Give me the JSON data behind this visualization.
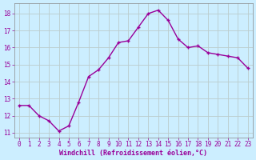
{
  "x": [
    0,
    1,
    2,
    3,
    4,
    5,
    6,
    7,
    8,
    9,
    10,
    11,
    12,
    13,
    14,
    15,
    16,
    17,
    18,
    19,
    20,
    21,
    22,
    23
  ],
  "y": [
    12.6,
    12.6,
    12.0,
    11.7,
    11.1,
    11.4,
    12.8,
    14.3,
    14.7,
    15.4,
    16.3,
    16.4,
    17.2,
    18.0,
    18.2,
    17.6,
    16.5,
    16.0,
    16.1,
    15.7,
    15.6,
    15.5,
    15.4,
    14.8
  ],
  "line_color": "#990099",
  "marker": "+",
  "marker_size": 3.5,
  "bg_color": "#cceeff",
  "grid_color": "#bbcccc",
  "xlabel": "Windchill (Refroidissement éolien,°C)",
  "xlabel_color": "#990099",
  "tick_color": "#990099",
  "ylim": [
    10.7,
    18.6
  ],
  "xlim": [
    -0.5,
    23.5
  ],
  "yticks": [
    11,
    12,
    13,
    14,
    15,
    16,
    17,
    18
  ],
  "xticks": [
    0,
    1,
    2,
    3,
    4,
    5,
    6,
    7,
    8,
    9,
    10,
    11,
    12,
    13,
    14,
    15,
    16,
    17,
    18,
    19,
    20,
    21,
    22,
    23
  ],
  "font_family": "monospace",
  "tick_fontsize": 5.5,
  "xlabel_fontsize": 6.0,
  "linewidth": 1.0,
  "spine_color": "#888888"
}
